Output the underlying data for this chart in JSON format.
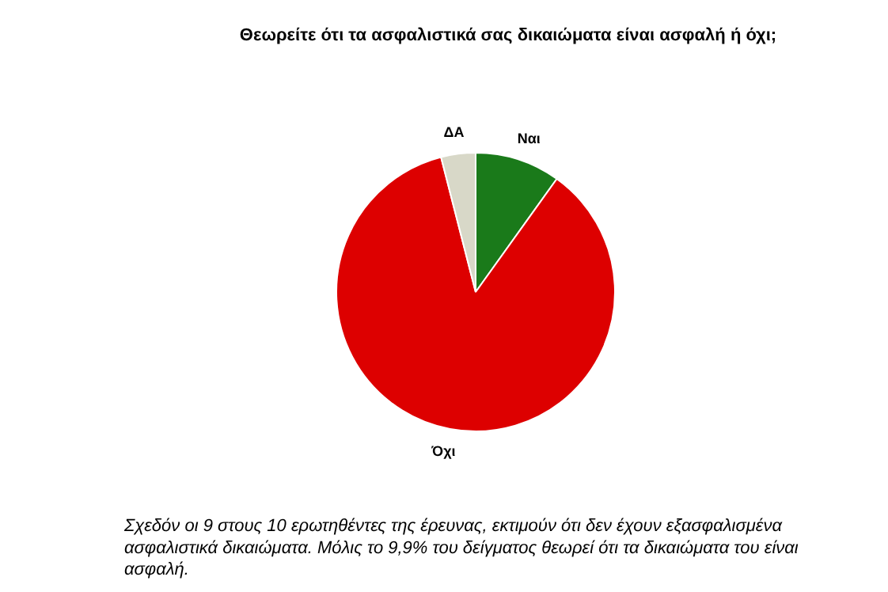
{
  "chart_data": {
    "type": "pie",
    "title": "Θεωρείτε ότι τα ασφαλιστικά σας δικαιώματα είναι ασφαλή ή όχι;",
    "categories": [
      "Ναι",
      "Όχι",
      "ΔΑ"
    ],
    "values": [
      9.9,
      86.1,
      4.0
    ],
    "colors": [
      "#1a7a1a",
      "#dd0000",
      "#d8d8c8"
    ],
    "annotations": [
      "Σχεδόν οι 9 στους 10 ερωτηθέντες της έρευνας, εκτιμούν ότι δεν έχουν εξασφαλισμένα ασφαλιστικά δικαιώματα. Μόλις το 9,9% του δείγματος θεωρεί ότι τα δικαιώματα του είναι ασφαλή."
    ]
  }
}
